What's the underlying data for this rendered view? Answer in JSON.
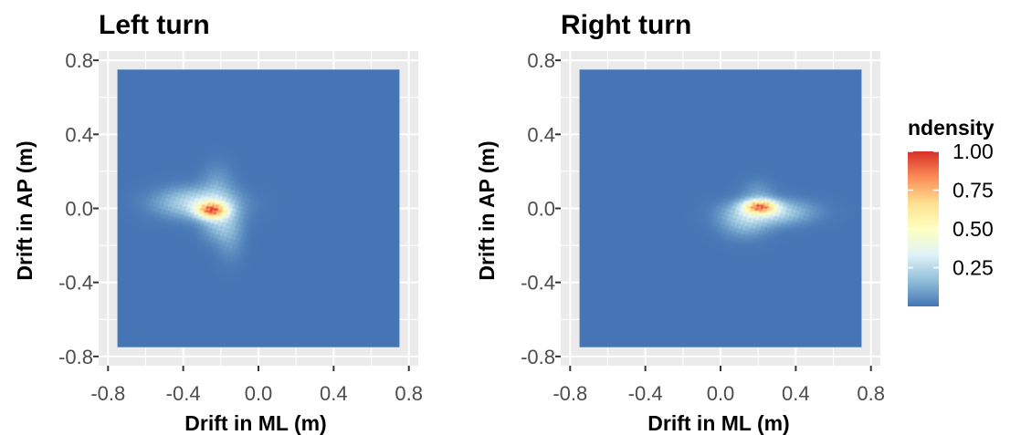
{
  "chart_data": [
    {
      "type": "heatmap",
      "title": "Left turn",
      "xlabel": "Drift in ML (m)",
      "ylabel": "Drift in AP (m)",
      "xlim": [
        -0.8,
        0.8
      ],
      "ylim": [
        -0.8,
        0.8
      ],
      "xticks": [
        "-0.8",
        "-0.4",
        "0.0",
        "0.4",
        "0.8"
      ],
      "yticks": [
        "-0.8",
        "-0.4",
        "0.0",
        "0.4",
        "0.8"
      ],
      "tile_range": [
        -0.75,
        0.75
      ],
      "grid": true,
      "density_peaks": [
        {
          "x": -0.25,
          "y": -0.01,
          "sx": 0.055,
          "sy": 0.03,
          "w": 1.0
        },
        {
          "x": -0.33,
          "y": 0.03,
          "sx": 0.14,
          "sy": 0.055,
          "w": 0.42
        },
        {
          "x": -0.2,
          "y": -0.07,
          "sx": 0.07,
          "sy": 0.07,
          "w": 0.3
        },
        {
          "x": -0.22,
          "y": 0.12,
          "sx": 0.06,
          "sy": 0.08,
          "w": 0.14
        },
        {
          "x": -0.15,
          "y": -0.18,
          "sx": 0.05,
          "sy": 0.08,
          "w": 0.1
        }
      ]
    },
    {
      "type": "heatmap",
      "title": "Right turn",
      "xlabel": "Drift in ML (m)",
      "ylabel": "Drift in AP (m)",
      "xlim": [
        -0.8,
        0.8
      ],
      "ylim": [
        -0.8,
        0.8
      ],
      "xticks": [
        "-0.8",
        "-0.4",
        "0.0",
        "0.4",
        "0.8"
      ],
      "yticks": [
        "-0.8",
        "-0.4",
        "0.0",
        "0.4",
        "0.8"
      ],
      "tile_range": [
        -0.75,
        0.75
      ],
      "grid": true,
      "density_peaks": [
        {
          "x": 0.21,
          "y": 0.01,
          "sx": 0.06,
          "sy": 0.025,
          "w": 1.0
        },
        {
          "x": 0.27,
          "y": -0.02,
          "sx": 0.14,
          "sy": 0.045,
          "w": 0.4
        },
        {
          "x": 0.13,
          "y": -0.07,
          "sx": 0.09,
          "sy": 0.06,
          "w": 0.25
        },
        {
          "x": 0.2,
          "y": 0.08,
          "sx": 0.06,
          "sy": 0.05,
          "w": 0.12
        }
      ]
    }
  ],
  "legend": {
    "title": "ndensity",
    "labels": [
      "1.00",
      "0.75",
      "0.50",
      "0.25"
    ],
    "values": [
      1.0,
      0.75,
      0.5,
      0.25
    ],
    "range": [
      0,
      1
    ],
    "placement": "right",
    "colors": [
      "#4575b4",
      "#91bfdb",
      "#e0f3f8",
      "#ffffbf",
      "#fee090",
      "#fc8d59",
      "#d73027"
    ]
  },
  "colors": {
    "panel_background": "#ebebeb",
    "gridline": "#ffffff",
    "tick_text": "#4d4d4d"
  }
}
